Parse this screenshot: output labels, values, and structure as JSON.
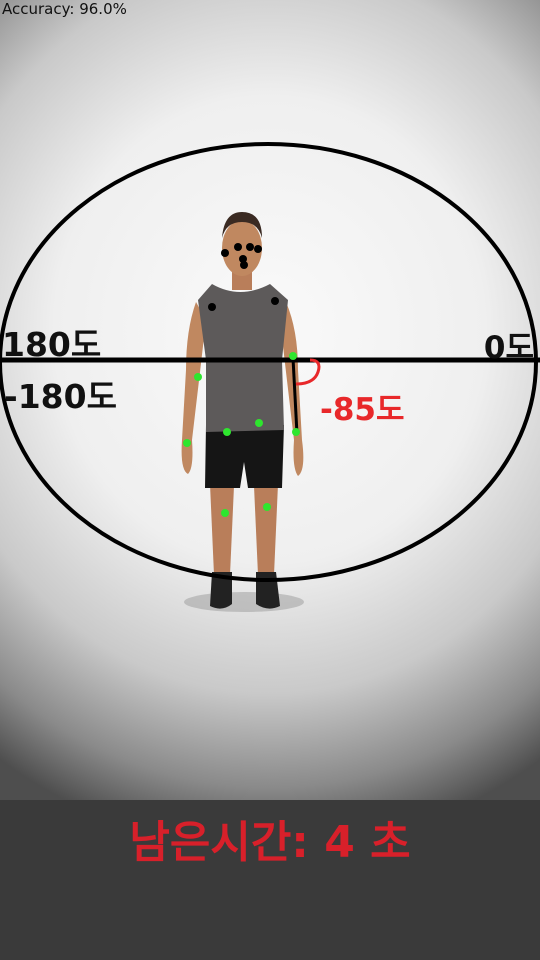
{
  "accuracy_text": "Accuracy: 96.0%",
  "angle_labels": {
    "left_positive": "180도",
    "right_zero": "0도",
    "left_negative": "-180도",
    "current_angle": "-85도"
  },
  "timer_text": "남은시간: 4 초",
  "colors": {
    "keypoint_good": "#2ee62e",
    "keypoint_face": "#000000",
    "angle_indicator": "#e8282a",
    "overlay_lines": "#000000",
    "timer_text": "#d8202a",
    "bottom_bar": "#3a3a3a"
  }
}
